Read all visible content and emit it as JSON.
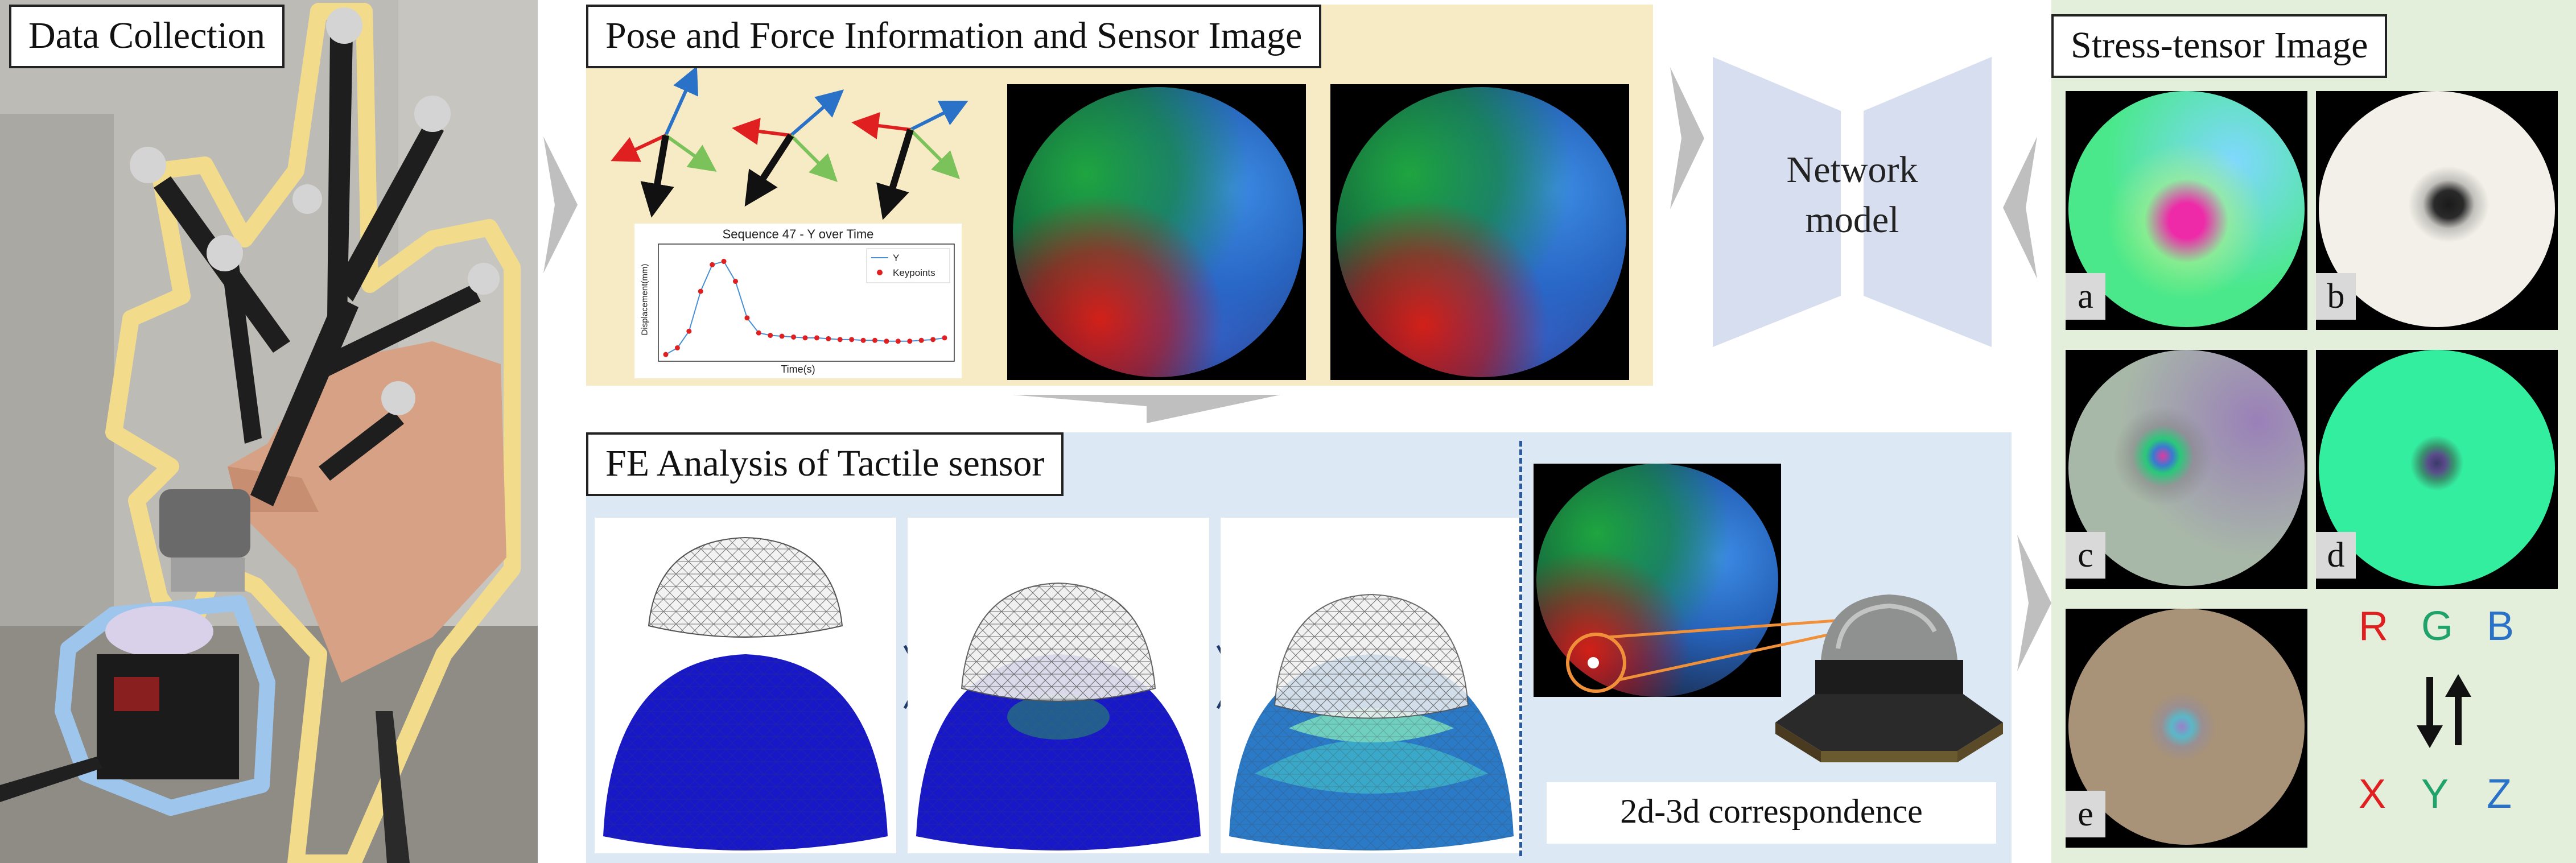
{
  "data_collection": {
    "title": "Data Collection"
  },
  "pose_force": {
    "title": "Pose and Force Information and Sensor Image",
    "chart": {
      "title": "Sequence 47 - Y over Time",
      "xlabel": "Time(s)",
      "ylabel": "Displacement(mm)",
      "legend": [
        "Y",
        "Keypoints"
      ]
    }
  },
  "network": {
    "label_line1": "Network",
    "label_line2": "model"
  },
  "fe_analysis": {
    "title": "FE Analysis of Tactile sensor",
    "correspondence_label": "2d-3d correspondence"
  },
  "stress_tensor": {
    "title": "Stress-tensor Image",
    "panels": [
      "a",
      "b",
      "c",
      "d",
      "e"
    ],
    "rgb": [
      "R",
      "G",
      "B"
    ],
    "xyz": [
      "X",
      "Y",
      "Z"
    ]
  },
  "colors": {
    "yellow_bg": "#f7ebc6",
    "blue_bg": "#dce8f4",
    "green_bg": "#e3eedb",
    "network_shape": "#d6def0",
    "arrow_gray": "#bfbfbf",
    "red": "#e02020",
    "green": "#1fa36a",
    "blue": "#2a72c7"
  },
  "chart_data": {
    "type": "line",
    "title": "Sequence 47 - Y over Time",
    "xlabel": "Time(s)",
    "ylabel": "Displacement(mm)",
    "series": [
      {
        "name": "Y",
        "values": [
          0.2,
          0.6,
          1.6,
          4.0,
          5.6,
          5.8,
          4.6,
          2.4,
          1.5,
          1.35,
          1.3,
          1.25,
          1.2,
          1.2,
          1.15,
          1.1,
          1.1,
          1.05,
          1.05,
          1.0,
          1.0,
          1.0,
          1.05,
          1.1,
          1.2
        ]
      },
      {
        "name": "Keypoints",
        "values": [
          0.2,
          0.6,
          1.6,
          4.0,
          5.6,
          5.8,
          4.6,
          2.4,
          1.5,
          1.35,
          1.3,
          1.25,
          1.2,
          1.2,
          1.15,
          1.1,
          1.1,
          1.05,
          1.05,
          1.0,
          1.0,
          1.0,
          1.05,
          1.1,
          1.2
        ]
      }
    ],
    "ylim": [
      0,
      6.5
    ],
    "legend_position": "top-right",
    "grid": false
  }
}
